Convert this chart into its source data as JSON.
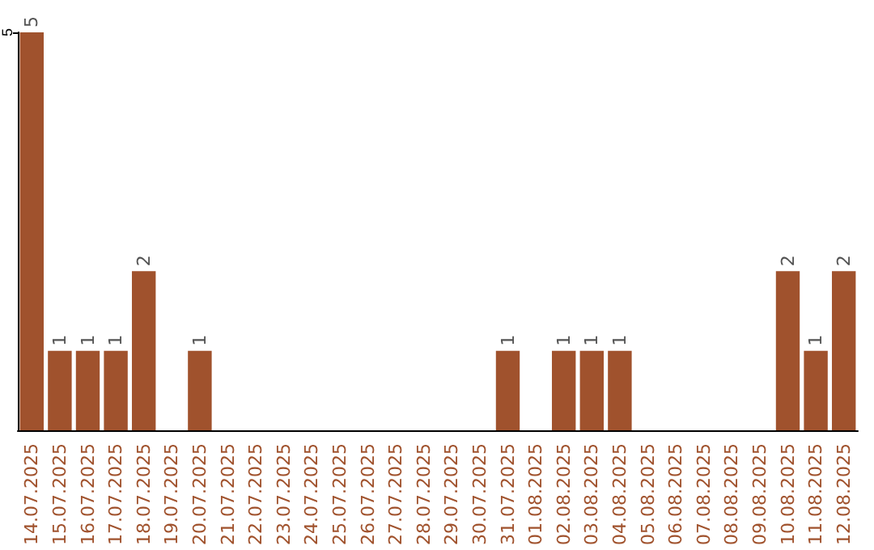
{
  "chart_data": {
    "type": "bar",
    "categories": [
      "14.07.2025",
      "15.07.2025",
      "16.07.2025",
      "17.07.2025",
      "18.07.2025",
      "19.07.2025",
      "20.07.2025",
      "21.07.2025",
      "22.07.2025",
      "23.07.2025",
      "24.07.2025",
      "25.07.2025",
      "26.07.2025",
      "27.07.2025",
      "28.07.2025",
      "29.07.2025",
      "30.07.2025",
      "31.07.2025",
      "01.08.2025",
      "02.08.2025",
      "03.08.2025",
      "04.08.2025",
      "05.08.2025",
      "06.08.2025",
      "07.08.2025",
      "08.08.2025",
      "09.08.2025",
      "10.08.2025",
      "11.08.2025",
      "12.08.2025"
    ],
    "values": [
      5,
      1,
      1,
      1,
      2,
      0,
      1,
      0,
      0,
      0,
      0,
      0,
      0,
      0,
      0,
      0,
      0,
      1,
      0,
      1,
      1,
      1,
      0,
      0,
      0,
      0,
      0,
      2,
      1,
      2
    ],
    "value_labels": [
      "5",
      "1",
      "1",
      "1",
      "2",
      null,
      "1",
      null,
      null,
      null,
      null,
      null,
      null,
      null,
      null,
      null,
      null,
      "1",
      null,
      "1",
      "1",
      "1",
      null,
      null,
      null,
      null,
      null,
      "2",
      "1",
      "2"
    ],
    "color": "#a0522d",
    "ylim": [
      0,
      5
    ],
    "yticks": [
      5
    ]
  }
}
